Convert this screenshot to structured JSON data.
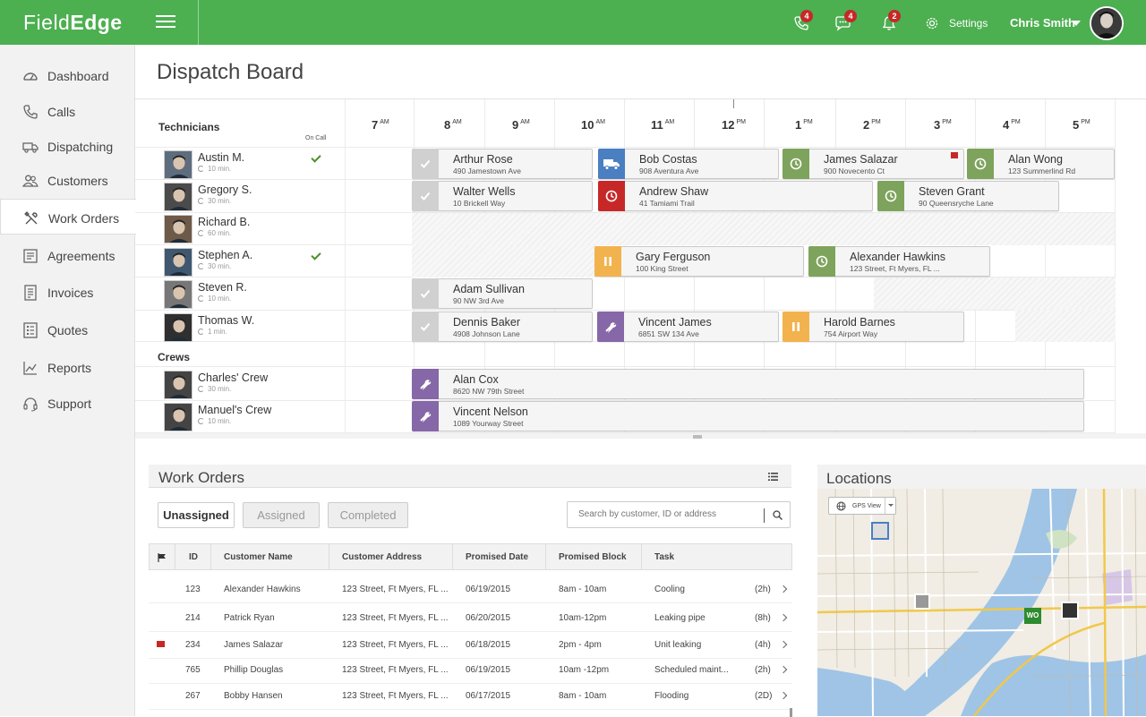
{
  "app": {
    "logo_light": "Field",
    "logo_bold": "Edge"
  },
  "topbar": {
    "phone_badge": "4",
    "messages_badge": "4",
    "alerts_badge": "2",
    "settings_label": "Settings",
    "user_name": "Chris Smith"
  },
  "sidebar": {
    "items": [
      {
        "label": "Dashboard",
        "icon": "dashboard-icon"
      },
      {
        "label": "Calls",
        "icon": "phone-icon"
      },
      {
        "label": "Dispatching",
        "icon": "truck-icon"
      },
      {
        "label": "Customers",
        "icon": "users-icon"
      },
      {
        "label": "Work Orders",
        "icon": "tools-icon",
        "active": true
      },
      {
        "label": "Agreements",
        "icon": "document-icon"
      },
      {
        "label": "Invoices",
        "icon": "invoice-icon"
      },
      {
        "label": "Quotes",
        "icon": "quote-icon"
      },
      {
        "label": "Reports",
        "icon": "chart-icon"
      },
      {
        "label": "Support",
        "icon": "headset-icon"
      }
    ]
  },
  "page": {
    "title": "Dispatch Board"
  },
  "board": {
    "technicians_label": "Technicians",
    "on_call_label": "On Call",
    "crews_label": "Crews",
    "hours": [
      {
        "h": "7",
        "ap": "AM"
      },
      {
        "h": "8",
        "ap": "AM"
      },
      {
        "h": "9",
        "ap": "AM"
      },
      {
        "h": "10",
        "ap": "AM"
      },
      {
        "h": "11",
        "ap": "AM"
      },
      {
        "h": "12",
        "ap": "PM"
      },
      {
        "h": "1",
        "ap": "PM"
      },
      {
        "h": "2",
        "ap": "PM"
      },
      {
        "h": "3",
        "ap": "PM"
      },
      {
        "h": "4",
        "ap": "PM"
      },
      {
        "h": "5",
        "ap": "PM"
      }
    ],
    "technicians": [
      {
        "name": "Austin M.",
        "meta": "10 min.",
        "on_call": true
      },
      {
        "name": "Gregory S.",
        "meta": "30 min.",
        "on_call": false
      },
      {
        "name": "Richard B.",
        "meta": "60 min.",
        "on_call": false
      },
      {
        "name": "Stephen A.",
        "meta": "30 min.",
        "on_call": true
      },
      {
        "name": "Steven R.",
        "meta": "10 min.",
        "on_call": false
      },
      {
        "name": "Thomas W.",
        "meta": "1 min.",
        "on_call": false
      }
    ],
    "crews": [
      {
        "name": "Charles' Crew",
        "meta": "30 min."
      },
      {
        "name": "Manuel's Crew",
        "meta": "10 min."
      }
    ],
    "jobs": [
      {
        "name": "Arthur Rose",
        "address": "490 Jamestown Ave",
        "status": "completed"
      },
      {
        "name": "Bob Costas",
        "address": "908 Aventura Ave",
        "status": "en-route"
      },
      {
        "name": "James Salazar",
        "address": "900 Novecento Ct",
        "status": "scheduled",
        "flag": true
      },
      {
        "name": "Alan Wong",
        "address": "123 Summerlind Rd",
        "status": "scheduled"
      },
      {
        "name": "Walter Wells",
        "address": "10 Brickell Way",
        "status": "completed"
      },
      {
        "name": "Andrew Shaw",
        "address": "41 Tamiami Trail",
        "status": "late"
      },
      {
        "name": "Steven Grant",
        "address": "90 Queensryche Lane",
        "status": "scheduled"
      },
      {
        "name": "Gary Ferguson",
        "address": "100 King Street",
        "status": "paused"
      },
      {
        "name": "Alexander Hawkins",
        "address": "123 Street, Ft Myers, FL ...",
        "status": "scheduled"
      },
      {
        "name": "Adam Sullivan",
        "address": "90 NW 3rd Ave",
        "status": "completed"
      },
      {
        "name": "Dennis Baker",
        "address": "4908 Johnson Lane",
        "status": "completed"
      },
      {
        "name": "Vincent James",
        "address": "6851 SW 134 Ave",
        "status": "working"
      },
      {
        "name": "Harold Barnes",
        "address": "754 Airport Way",
        "status": "paused"
      },
      {
        "name": "Alan Cox",
        "address": "8620 NW 79th Street",
        "status": "working"
      },
      {
        "name": "Vincent Nelson",
        "address": "1089 Yourway Street",
        "status": "working"
      }
    ]
  },
  "work_orders": {
    "title": "Work Orders",
    "tabs": [
      "Unassigned",
      "Assigned",
      "Completed"
    ],
    "search_placeholder": "Search by customer, ID or address",
    "columns": [
      "ID",
      "Customer Name",
      "Customer Address",
      "Promised Date",
      "Promised Block",
      "Task"
    ],
    "rows": [
      {
        "flag": false,
        "id": "123",
        "customer": "Alexander Hawkins",
        "address": "123 Street, Ft Myers, FL ...",
        "date": "06/19/2015",
        "block": "8am - 10am",
        "task": "Cooling",
        "duration": "(2h)"
      },
      {
        "flag": false,
        "id": "214",
        "customer": "Patrick Ryan",
        "address": "123 Street, Ft Myers, FL ...",
        "date": "06/20/2015",
        "block": "10am-12pm",
        "task": "Leaking pipe",
        "duration": "(8h)"
      },
      {
        "flag": true,
        "id": "234",
        "customer": "James Salazar",
        "address": "123 Street, Ft Myers, FL ...",
        "date": "06/18/2015",
        "block": "2pm - 4pm",
        "task": "Unit leaking",
        "duration": "(4h)"
      },
      {
        "flag": false,
        "id": "765",
        "customer": "Phillip Douglas",
        "address": "123 Street, Ft Myers, FL ...",
        "date": "06/19/2015",
        "block": "10am -12pm",
        "task": "Scheduled maint...",
        "duration": "(2h)"
      },
      {
        "flag": false,
        "id": "267",
        "customer": "Bobby Hansen",
        "address": "123 Street, Ft Myers, FL ...",
        "date": "06/17/2015",
        "block": "8am - 10am",
        "task": "Flooding",
        "duration": "(2D)"
      }
    ]
  },
  "locations": {
    "title": "Locations",
    "gps_view_label": "GPS View",
    "wo_marker_label": "WO"
  },
  "colors": {
    "brand_green": "#4caf50",
    "completed": "#d0d0d0",
    "en_route": "#4a7fc1",
    "scheduled": "#7ea35c",
    "late": "#c62828",
    "paused": "#f2b34e",
    "working": "#8667a8"
  }
}
